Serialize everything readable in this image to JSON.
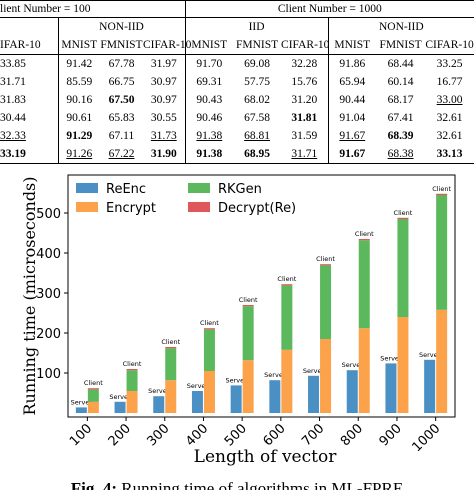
{
  "table": {
    "group_headers": [
      "lient Number = 100",
      "Client Number = 1000"
    ],
    "subgroup_headers": [
      "NON-IID",
      "IID",
      "NON-IID"
    ],
    "columns": [
      "IFAR-10",
      "MNIST",
      "FMNIST",
      "CIFAR-10",
      "MNIST",
      "FMNIST",
      "CIFAR-10",
      "MNIST",
      "FMNIST",
      "CIFAR-10"
    ],
    "rows": [
      [
        {
          "text": "33.85"
        },
        {
          "text": "91.42"
        },
        {
          "text": "67.78"
        },
        {
          "text": "31.97"
        },
        {
          "text": "91.70"
        },
        {
          "text": "69.08"
        },
        {
          "text": "32.28"
        },
        {
          "text": "91.86"
        },
        {
          "text": "68.44"
        },
        {
          "text": "33.25"
        }
      ],
      [
        {
          "text": "31.71"
        },
        {
          "text": "85.59"
        },
        {
          "text": "66.75"
        },
        {
          "text": "30.97"
        },
        {
          "text": "69.31"
        },
        {
          "text": "57.75"
        },
        {
          "text": "15.76"
        },
        {
          "text": "65.94"
        },
        {
          "text": "60.14"
        },
        {
          "text": "16.77"
        }
      ],
      [
        {
          "text": "31.83"
        },
        {
          "text": "90.16"
        },
        {
          "text": "67.50",
          "style": "bold"
        },
        {
          "text": "30.97"
        },
        {
          "text": "90.43"
        },
        {
          "text": "68.02"
        },
        {
          "text": "31.20"
        },
        {
          "text": "90.44"
        },
        {
          "text": "68.17"
        },
        {
          "text": "33.00",
          "style": "underline"
        }
      ],
      [
        {
          "text": "30.44"
        },
        {
          "text": "90.61"
        },
        {
          "text": "65.83"
        },
        {
          "text": "30.55"
        },
        {
          "text": "90.46"
        },
        {
          "text": "67.58"
        },
        {
          "text": "31.81",
          "style": "bold"
        },
        {
          "text": "91.04"
        },
        {
          "text": "67.41"
        },
        {
          "text": "32.61"
        }
      ],
      [
        {
          "text": "32.33",
          "style": "underline"
        },
        {
          "text": "91.29",
          "style": "bold"
        },
        {
          "text": "67.11"
        },
        {
          "text": "31.73",
          "style": "underline"
        },
        {
          "text": "91.38",
          "style": "underline"
        },
        {
          "text": "68.81",
          "style": "underline"
        },
        {
          "text": "31.59"
        },
        {
          "text": "91.67",
          "style": "underline"
        },
        {
          "text": "68.39",
          "style": "bold"
        },
        {
          "text": "32.61"
        }
      ],
      [
        {
          "text": "33.19",
          "style": "bold"
        },
        {
          "text": "91.26",
          "style": "underline"
        },
        {
          "text": "67.22",
          "style": "underline"
        },
        {
          "text": "31.90",
          "style": "bold"
        },
        {
          "text": "91.38",
          "style": "bold"
        },
        {
          "text": "68.95",
          "style": "bold"
        },
        {
          "text": "31.71",
          "style": "underline"
        },
        {
          "text": "91.67",
          "style": "bold"
        },
        {
          "text": "68.38",
          "style": "underline"
        },
        {
          "text": "33.13",
          "style": "bold"
        }
      ]
    ]
  },
  "figure": {
    "caption_label": "Fig. 4:",
    "caption": "Running time of algorithms in ML-FPRE",
    "chart_data": {
      "type": "bar",
      "x_label": "Length of vector",
      "y_label": "Running time (microseconds)",
      "categories": [
        "100",
        "200",
        "300",
        "400",
        "500",
        "600",
        "700",
        "800",
        "900",
        "1000"
      ],
      "stack_labels": {
        "server": "Server",
        "client": "Client"
      },
      "series": [
        {
          "name": "ReEnc",
          "color": "#4a90c4",
          "stack": "server",
          "values": [
            14,
            28,
            42,
            55,
            69,
            82,
            93,
            107,
            124,
            133
          ]
        },
        {
          "name": "Encrypt",
          "color": "#fba24a",
          "stack": "client",
          "values": [
            28,
            55,
            82,
            105,
            132,
            158,
            185,
            212,
            240,
            258
          ]
        },
        {
          "name": "RKGen",
          "color": "#5cb85c",
          "stack": "client",
          "values": [
            31,
            52,
            80,
            104,
            135,
            161,
            184,
            220,
            245,
            287
          ]
        },
        {
          "name": "Decrypt(Re)",
          "color": "#e0575b",
          "stack": "client",
          "values": [
            3,
            3,
            3,
            3,
            3,
            3,
            3,
            3,
            3,
            3
          ]
        }
      ],
      "ylim": [
        -10,
        595
      ],
      "yticks": [
        100,
        200,
        300,
        400,
        500
      ],
      "legend": "upper left"
    }
  }
}
